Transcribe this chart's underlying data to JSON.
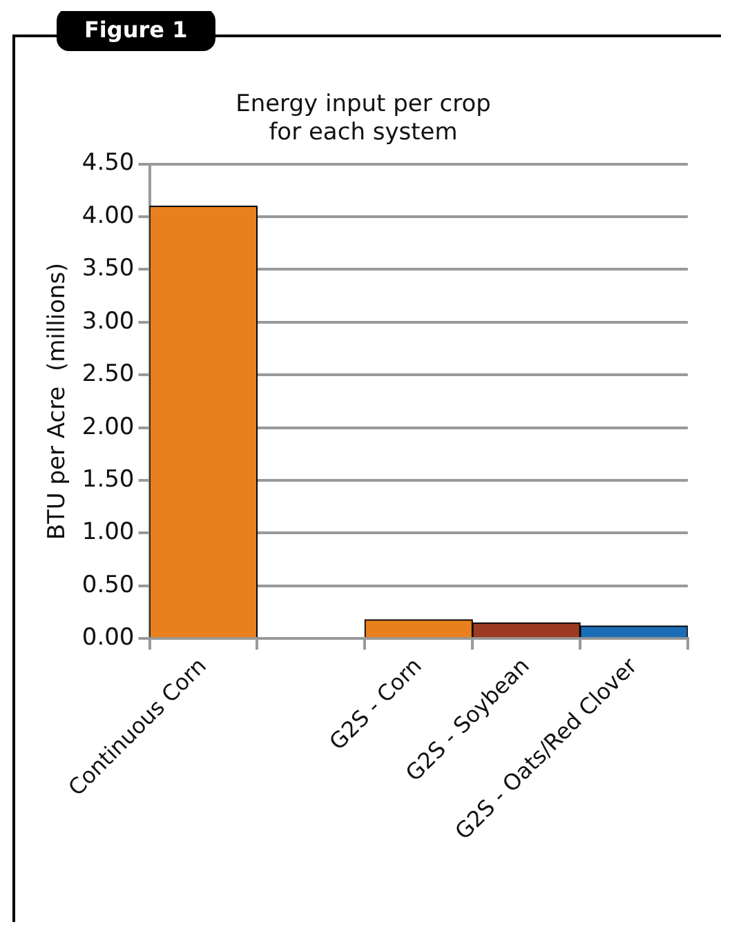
{
  "chart_data": {
    "type": "bar",
    "title": "Energy input per crop\nfor each system",
    "ylabel": "BTU per Acre  (millions)",
    "annotations": [
      "Figure 1"
    ],
    "categories": [
      "Continuous Corn",
      null,
      "G2S - Corn",
      "G2S - Soybean",
      "G2S - Oats/Red Clover"
    ],
    "values": [
      4.1,
      null,
      0.18,
      0.15,
      0.12
    ],
    "colors": [
      "#e8801e",
      "#e8801e",
      "#e8801e",
      "#9c3a22",
      "#1b6db5"
    ],
    "ylim": [
      0,
      4.5
    ],
    "yticks": [
      {
        "value": 0,
        "label": "0.00"
      },
      {
        "value": 0.5,
        "label": "0.50"
      },
      {
        "value": 1,
        "label": "1.00"
      },
      {
        "value": 1.5,
        "label": "1.50"
      },
      {
        "value": 2,
        "label": "2.00"
      },
      {
        "value": 2.5,
        "label": "2.50"
      },
      {
        "value": 3,
        "label": "3.00"
      },
      {
        "value": 3.5,
        "label": "3.50"
      },
      {
        "value": 4,
        "label": "4.00"
      },
      {
        "value": 4.5,
        "label": "4.50"
      }
    ],
    "grid": "y",
    "legend": false
  }
}
